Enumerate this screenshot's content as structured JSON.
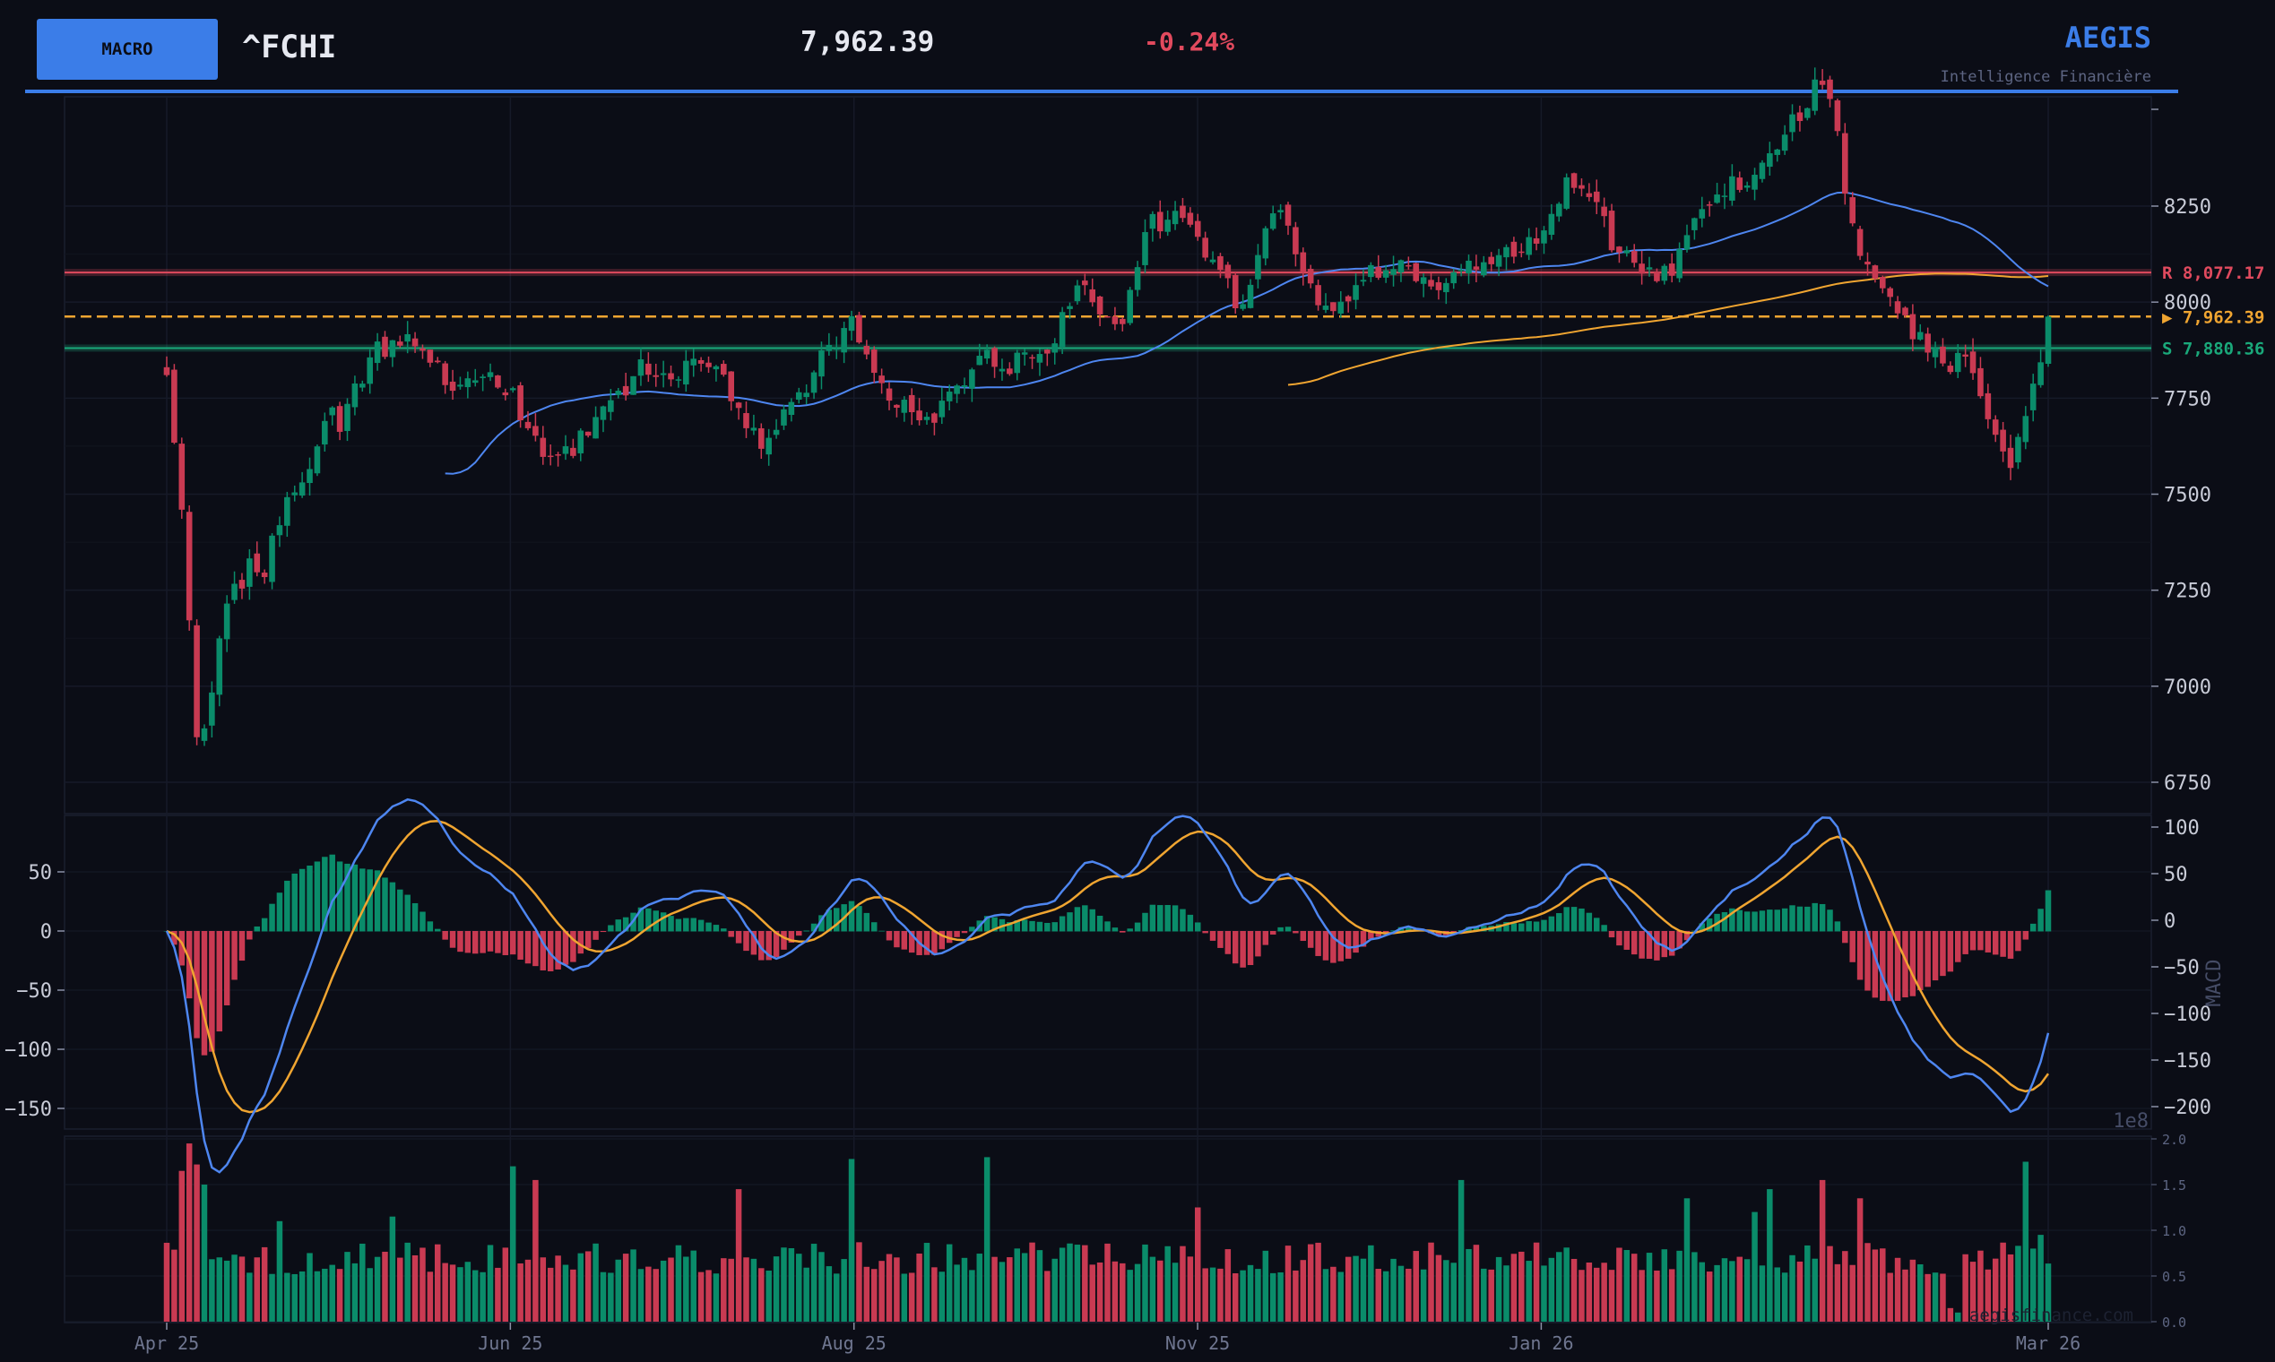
{
  "header": {
    "badge": "MACRO",
    "ticker": "^FCHI",
    "price": "7,962.39",
    "change": "-0.24%",
    "brand": "AEGIS",
    "tagline": "Intelligence Financière"
  },
  "colors": {
    "background": "#0b0d16",
    "up": "#0a8c6a",
    "down": "#c93a52",
    "sma_short": "#4e86f0",
    "sma_long": "#f0a531",
    "macd": "#4e86f0",
    "signal": "#f0a531",
    "accent": "#3b7de8",
    "resistance": "#e04a5e",
    "support": "#1aa87a",
    "last_price": "#f0a531"
  },
  "chart_data": {
    "type": "candlestick",
    "x_tick_labels": [
      "Apr 25",
      "Jun 25",
      "Aug 25",
      "Nov 25",
      "Jan 26",
      "Mar 26"
    ],
    "x_tick_days": [
      0,
      61,
      122,
      183,
      244,
      334
    ],
    "price_axis": {
      "ticks": [
        8250,
        8000,
        7750,
        7500,
        7250,
        7000,
        6750
      ],
      "tick_labels": [
        "8250",
        "8000",
        "7750",
        "7500",
        "7250",
        "7000",
        "6750"
      ],
      "ylim": [
        6750,
        8280
      ]
    },
    "levels": {
      "resistance": {
        "label": "R",
        "value": 8077.17,
        "text": "8,077.17"
      },
      "support": {
        "label": "S",
        "value": 7880.36,
        "text": "7,880.36"
      },
      "last": {
        "value": 7962.39,
        "text": "▶ 7,962.39"
      }
    },
    "ohlc_anchors": [
      [
        0,
        7840
      ],
      [
        1,
        7650
      ],
      [
        3,
        7450
      ],
      [
        5,
        6900
      ],
      [
        7,
        6870
      ],
      [
        9,
        7080
      ],
      [
        11,
        7250
      ],
      [
        13,
        7260
      ],
      [
        15,
        7320
      ],
      [
        17,
        7280
      ],
      [
        19,
        7420
      ],
      [
        21,
        7460
      ],
      [
        23,
        7510
      ],
      [
        25,
        7550
      ],
      [
        27,
        7640
      ],
      [
        29,
        7700
      ],
      [
        31,
        7680
      ],
      [
        33,
        7760
      ],
      [
        35,
        7800
      ],
      [
        37,
        7870
      ],
      [
        39,
        7860
      ],
      [
        41,
        7900
      ],
      [
        43,
        7910
      ],
      [
        45,
        7880
      ],
      [
        47,
        7850
      ],
      [
        49,
        7800
      ],
      [
        51,
        7790
      ],
      [
        53,
        7820
      ],
      [
        55,
        7810
      ],
      [
        57,
        7800
      ],
      [
        59,
        7790
      ],
      [
        61,
        7770
      ],
      [
        63,
        7700
      ],
      [
        65,
        7660
      ],
      [
        67,
        7610
      ],
      [
        69,
        7570
      ],
      [
        71,
        7600
      ],
      [
        73,
        7630
      ],
      [
        75,
        7660
      ],
      [
        77,
        7700
      ],
      [
        79,
        7720
      ],
      [
        81,
        7760
      ],
      [
        83,
        7800
      ],
      [
        85,
        7840
      ],
      [
        87,
        7810
      ],
      [
        89,
        7780
      ],
      [
        91,
        7800
      ],
      [
        93,
        7830
      ],
      [
        95,
        7860
      ],
      [
        97,
        7820
      ],
      [
        99,
        7780
      ],
      [
        101,
        7740
      ],
      [
        103,
        7680
      ],
      [
        105,
        7620
      ],
      [
        107,
        7660
      ],
      [
        109,
        7700
      ],
      [
        111,
        7740
      ],
      [
        113,
        7780
      ],
      [
        115,
        7820
      ],
      [
        117,
        7870
      ],
      [
        119,
        7910
      ],
      [
        121,
        7950
      ],
      [
        123,
        7910
      ],
      [
        125,
        7850
      ],
      [
        127,
        7760
      ],
      [
        129,
        7730
      ],
      [
        131,
        7720
      ],
      [
        133,
        7700
      ],
      [
        135,
        7680
      ],
      [
        137,
        7720
      ],
      [
        139,
        7760
      ],
      [
        141,
        7800
      ],
      [
        143,
        7840
      ],
      [
        145,
        7870
      ],
      [
        147,
        7850
      ],
      [
        149,
        7830
      ],
      [
        151,
        7840
      ],
      [
        153,
        7860
      ],
      [
        155,
        7880
      ],
      [
        157,
        7900
      ],
      [
        159,
        7960
      ],
      [
        161,
        8040
      ],
      [
        163,
        8060
      ],
      [
        165,
        8010
      ],
      [
        167,
        7960
      ],
      [
        169,
        7900
      ],
      [
        171,
        8040
      ],
      [
        173,
        8130
      ],
      [
        175,
        8200
      ],
      [
        177,
        8220
      ],
      [
        179,
        8230
      ],
      [
        181,
        8200
      ],
      [
        183,
        8150
      ],
      [
        185,
        8100
      ],
      [
        187,
        8070
      ],
      [
        189,
        8020
      ],
      [
        191,
        8000
      ],
      [
        193,
        8100
      ],
      [
        195,
        8180
      ],
      [
        197,
        8250
      ],
      [
        199,
        8200
      ],
      [
        201,
        8100
      ],
      [
        203,
        8030
      ],
      [
        205,
        7980
      ],
      [
        207,
        7960
      ],
      [
        209,
        8000
      ],
      [
        211,
        8020
      ],
      [
        213,
        8060
      ],
      [
        215,
        8080
      ],
      [
        217,
        8090
      ],
      [
        219,
        8100
      ],
      [
        221,
        8080
      ],
      [
        223,
        8060
      ],
      [
        225,
        8040
      ],
      [
        227,
        8060
      ],
      [
        229,
        8080
      ],
      [
        231,
        8090
      ],
      [
        233,
        8100
      ],
      [
        235,
        8110
      ],
      [
        237,
        8120
      ],
      [
        239,
        8120
      ],
      [
        241,
        8140
      ],
      [
        243,
        8160
      ],
      [
        245,
        8200
      ],
      [
        247,
        8280
      ],
      [
        249,
        8320
      ],
      [
        251,
        8300
      ],
      [
        253,
        8260
      ],
      [
        255,
        8200
      ],
      [
        257,
        8150
      ],
      [
        259,
        8120
      ],
      [
        261,
        8100
      ],
      [
        263,
        8080
      ],
      [
        265,
        8060
      ],
      [
        267,
        8080
      ],
      [
        269,
        8130
      ],
      [
        271,
        8200
      ],
      [
        273,
        8240
      ],
      [
        275,
        8280
      ],
      [
        277,
        8310
      ],
      [
        279,
        8320
      ],
      [
        281,
        8330
      ],
      [
        283,
        8350
      ],
      [
        285,
        8380
      ],
      [
        287,
        8420
      ],
      [
        289,
        8470
      ],
      [
        291,
        8520
      ],
      [
        293,
        8560
      ],
      [
        295,
        8580
      ],
      [
        297,
        8400
      ],
      [
        299,
        8200
      ],
      [
        301,
        8100
      ],
      [
        303,
        8080
      ],
      [
        305,
        8030
      ],
      [
        307,
        7980
      ],
      [
        309,
        7940
      ],
      [
        311,
        7920
      ],
      [
        313,
        7880
      ],
      [
        315,
        7840
      ],
      [
        317,
        7820
      ],
      [
        319,
        7900
      ],
      [
        321,
        7820
      ],
      [
        323,
        7720
      ],
      [
        325,
        7640
      ],
      [
        327,
        7580
      ],
      [
        329,
        7640
      ],
      [
        331,
        7760
      ],
      [
        333,
        7870
      ],
      [
        334,
        7962.39
      ]
    ],
    "series": [
      {
        "name": "SMA 50",
        "kind": "line",
        "color": "#4e86f0"
      },
      {
        "name": "SMA 200",
        "kind": "line",
        "color": "#f0a531"
      }
    ],
    "macd": {
      "ylabel": "MACD",
      "left_ticks": [
        50,
        0,
        -50,
        -100,
        -150
      ],
      "left_tick_labels": [
        "50",
        "0",
        "−50",
        "−100",
        "−150"
      ],
      "right_ticks": [
        100,
        50,
        0,
        -50,
        -100,
        -150,
        -200
      ],
      "right_tick_labels": [
        "100",
        "50",
        "0",
        "−50",
        "−100",
        "−150",
        "−200"
      ],
      "left_ylim": [
        -175,
        70
      ],
      "right_ylim": [
        -200,
        100
      ]
    },
    "volume": {
      "offset_label": "1e8",
      "ticks": [
        2.0,
        1.5,
        1.0,
        0.5,
        0.0
      ],
      "tick_labels": [
        "2.0",
        "1.5",
        "1.0",
        "0.5",
        "0.0"
      ],
      "ylim": [
        0,
        2.0
      ],
      "spike_values": [
        [
          3,
          1.65
        ],
        [
          4,
          1.95
        ],
        [
          5,
          1.72
        ],
        [
          7,
          1.5
        ],
        [
          20,
          1.1
        ],
        [
          40,
          1.15
        ],
        [
          61,
          1.7
        ],
        [
          66,
          1.55
        ],
        [
          101,
          1.45
        ],
        [
          122,
          1.78
        ],
        [
          145,
          1.8
        ],
        [
          183,
          1.25
        ],
        [
          230,
          1.55
        ],
        [
          270,
          1.35
        ],
        [
          282,
          1.2
        ],
        [
          284,
          1.45
        ],
        [
          294,
          1.55
        ],
        [
          300,
          1.35
        ],
        [
          330,
          1.75
        ],
        [
          332,
          0.95
        ]
      ]
    },
    "watermark": "aegisfinance.com"
  }
}
